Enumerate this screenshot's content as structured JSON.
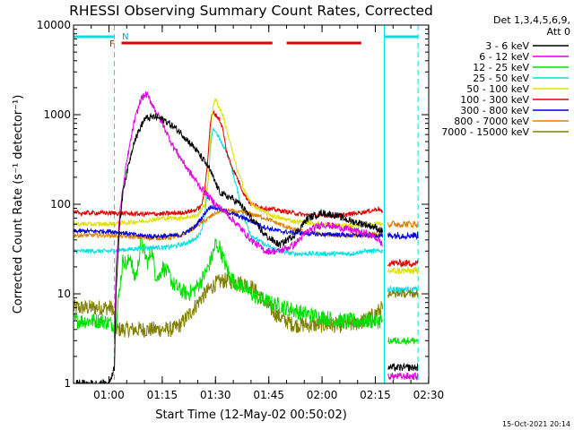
{
  "chart_data": {
    "type": "line",
    "title": "RHESSI Observing Summary Count Rates, Corrected",
    "xlabel": "Start Time (12-May-02 00:50:02)",
    "ylabel": "Corrected Count Rate (s⁻¹ detector⁻¹)",
    "ylog": true,
    "ylim": [
      1,
      10000
    ],
    "xlim": [
      0,
      100
    ],
    "x_unit": "minutes after 00:50:02",
    "x_ticks": [
      {
        "label": "01:00",
        "x": 9.97
      },
      {
        "label": "01:15",
        "x": 24.97
      },
      {
        "label": "01:30",
        "x": 39.97
      },
      {
        "label": "01:45",
        "x": 54.97
      },
      {
        "label": "02:00",
        "x": 69.97
      },
      {
        "label": "02:15",
        "x": 84.97
      },
      {
        "label": "02:30",
        "x": 99.97
      }
    ],
    "y_ticks": [
      {
        "label": "1",
        "y": 1
      },
      {
        "label": "10",
        "y": 10
      },
      {
        "label": "100",
        "y": 100
      },
      {
        "label": "1000",
        "y": 1000
      },
      {
        "label": "10000",
        "y": 10000
      }
    ],
    "legend_header": [
      "Det 1,3,4,5,6,9,",
      "Att 0"
    ],
    "legend_position": "right",
    "footer": "15-Oct-2021 20:14",
    "flag_markers": {
      "N": "N",
      "F": "F"
    },
    "night_bars": [
      [
        0,
        11.5
      ],
      [
        87.5,
        97
      ]
    ],
    "flare_bars": [
      [
        13.5,
        56
      ],
      [
        60,
        81
      ]
    ],
    "night_boundaries": [
      0,
      11.5,
      87.5,
      97
    ],
    "series": [
      {
        "name": "3 - 6 keV",
        "color": "#000000",
        "x": [
          0,
          10,
          11.5,
          12,
          13,
          14,
          17,
          20,
          23,
          26,
          30,
          34,
          38,
          41,
          42.5,
          44,
          47,
          50,
          54,
          58,
          62,
          66,
          70,
          74,
          78,
          82,
          85,
          87
        ],
        "y": [
          1,
          1,
          1.5,
          12,
          60,
          150,
          500,
          900,
          950,
          850,
          640,
          430,
          260,
          140,
          125,
          120,
          100,
          70,
          45,
          35,
          45,
          70,
          80,
          75,
          65,
          60,
          55,
          50
        ]
      },
      {
        "name": "6 - 12 keV",
        "color": "#e000e0",
        "x": [
          11.5,
          12,
          13,
          15,
          17,
          19,
          20.5,
          22,
          25,
          28,
          32,
          36,
          40,
          43,
          46,
          50,
          54,
          58,
          62,
          66,
          70,
          75,
          80,
          84,
          86,
          87
        ],
        "y": [
          3,
          20,
          80,
          300,
          800,
          1500,
          1700,
          1350,
          800,
          450,
          250,
          150,
          100,
          80,
          60,
          40,
          30,
          30,
          35,
          50,
          60,
          55,
          50,
          45,
          40,
          35
        ]
      },
      {
        "name": "12 - 25 keV",
        "color": "#00e000",
        "x": [
          0,
          8,
          12,
          13,
          14,
          15,
          16,
          17,
          18,
          19,
          20,
          21,
          22,
          23,
          24,
          25,
          26,
          27,
          28,
          30,
          32,
          34,
          36,
          38,
          39.5,
          40,
          40.5,
          41,
          42,
          43,
          44,
          45,
          46,
          48,
          50,
          52,
          55,
          60,
          65,
          70,
          75,
          80,
          84,
          86,
          87
        ],
        "y": [
          5,
          5,
          4.5,
          12,
          25,
          20,
          28,
          15,
          18,
          40,
          28,
          22,
          32,
          17,
          15,
          20,
          18,
          16,
          13,
          11,
          10,
          11,
          14,
          20,
          30,
          38,
          30,
          35,
          26,
          20,
          16,
          14,
          13,
          12,
          10,
          9,
          8,
          7,
          6,
          5.5,
          5,
          5,
          5,
          5,
          5
        ]
      },
      {
        "name": "25 - 50 keV",
        "color": "#00e0e0",
        "x": [
          0,
          10,
          14,
          18,
          22,
          26,
          30,
          34,
          36,
          37,
          38,
          38.5,
          39,
          39.5,
          40,
          41,
          42,
          43,
          44,
          46,
          48,
          50,
          54,
          58,
          62,
          66,
          70,
          74,
          78,
          82,
          85,
          87
        ],
        "y": [
          30,
          30,
          31,
          32,
          33,
          33,
          35,
          40,
          50,
          80,
          200,
          400,
          600,
          700,
          650,
          550,
          450,
          400,
          300,
          150,
          70,
          45,
          35,
          30,
          28,
          28,
          28,
          28,
          28,
          30,
          30,
          30
        ]
      },
      {
        "name": "50 - 100 keV",
        "color": "#e0e000",
        "x": [
          0,
          10,
          20,
          25,
          30,
          35,
          37,
          38,
          38.5,
          39,
          39.5,
          40,
          40.5,
          41,
          42,
          43,
          44,
          46,
          48,
          50,
          54,
          58,
          62,
          66,
          70,
          75,
          80,
          84,
          86,
          87
        ],
        "y": [
          60,
          60,
          65,
          70,
          70,
          75,
          100,
          200,
          500,
          1000,
          1400,
          1450,
          1350,
          1200,
          1000,
          700,
          500,
          250,
          150,
          100,
          80,
          70,
          65,
          62,
          60,
          58,
          58,
          60,
          62,
          60
        ]
      },
      {
        "name": "100 - 300 keV",
        "color": "#e00000",
        "x": [
          0,
          10,
          18,
          24,
          30,
          34,
          36,
          37,
          38,
          38.5,
          39,
          39.5,
          40,
          41,
          42,
          43,
          44,
          46,
          48,
          50,
          54,
          58,
          62,
          66,
          70,
          75,
          80,
          84,
          86,
          87
        ],
        "y": [
          80,
          80,
          78,
          78,
          80,
          85,
          95,
          150,
          400,
          800,
          1000,
          1050,
          1000,
          900,
          700,
          400,
          300,
          200,
          130,
          100,
          90,
          85,
          80,
          75,
          75,
          75,
          80,
          85,
          90,
          80
        ]
      },
      {
        "name": "300 - 800 keV",
        "color": "#0000e0",
        "x": [
          0,
          10,
          14,
          18,
          22,
          26,
          30,
          34,
          36,
          38,
          39,
          40,
          41,
          42,
          44,
          46,
          48,
          50,
          54,
          58,
          62,
          66,
          70,
          74,
          78,
          82,
          85,
          87
        ],
        "y": [
          50,
          50,
          48,
          45,
          44,
          44,
          45,
          55,
          70,
          90,
          95,
          90,
          90,
          85,
          80,
          75,
          70,
          65,
          55,
          50,
          48,
          47,
          46,
          46,
          45,
          45,
          45,
          45
        ]
      },
      {
        "name": "800 - 7000 keV",
        "color": "#e08000",
        "x": [
          0,
          10,
          14,
          18,
          22,
          26,
          30,
          34,
          38,
          40,
          42,
          44,
          46,
          48,
          50,
          54,
          58,
          62,
          66,
          70,
          74,
          78,
          82,
          85,
          87
        ],
        "y": [
          45,
          45,
          44,
          43,
          42,
          42,
          44,
          55,
          70,
          80,
          85,
          85,
          82,
          80,
          78,
          70,
          60,
          52,
          48,
          46,
          45,
          45,
          45,
          46,
          45
        ]
      },
      {
        "name": "7000 - 15000 keV",
        "color": "#808000",
        "x": [
          0,
          8,
          11,
          12,
          16,
          20,
          24,
          28,
          30,
          32,
          34,
          36,
          38,
          40,
          42,
          44,
          46,
          48,
          50,
          52,
          54,
          56,
          58,
          62,
          66,
          70,
          74,
          78,
          82,
          85,
          87
        ],
        "y": [
          7,
          7,
          7,
          4,
          4,
          4,
          4,
          4,
          4.5,
          5.5,
          7,
          9,
          11,
          13,
          14,
          14,
          13.5,
          13,
          12,
          10,
          8,
          6.5,
          5.5,
          4.5,
          4.5,
          4.5,
          4.5,
          4.5,
          5,
          6,
          7
        ]
      }
    ],
    "post_gap": {
      "x_start": 88.5,
      "x_end": 97,
      "levels": [
        {
          "name": "3 - 6 keV",
          "y": 1.5
        },
        {
          "name": "6 - 12 keV",
          "y": 1.2
        },
        {
          "name": "12 - 25 keV",
          "y": 3
        },
        {
          "name": "25 - 50 keV",
          "y": 11
        },
        {
          "name": "50 - 100 keV",
          "y": 18
        },
        {
          "name": "100 - 300 keV",
          "y": 22
        },
        {
          "name": "300 - 800 keV",
          "y": 45
        },
        {
          "name": "800 - 7000 keV",
          "y": 60
        },
        {
          "name": "7000 - 15000 keV",
          "y": 10
        }
      ]
    }
  }
}
